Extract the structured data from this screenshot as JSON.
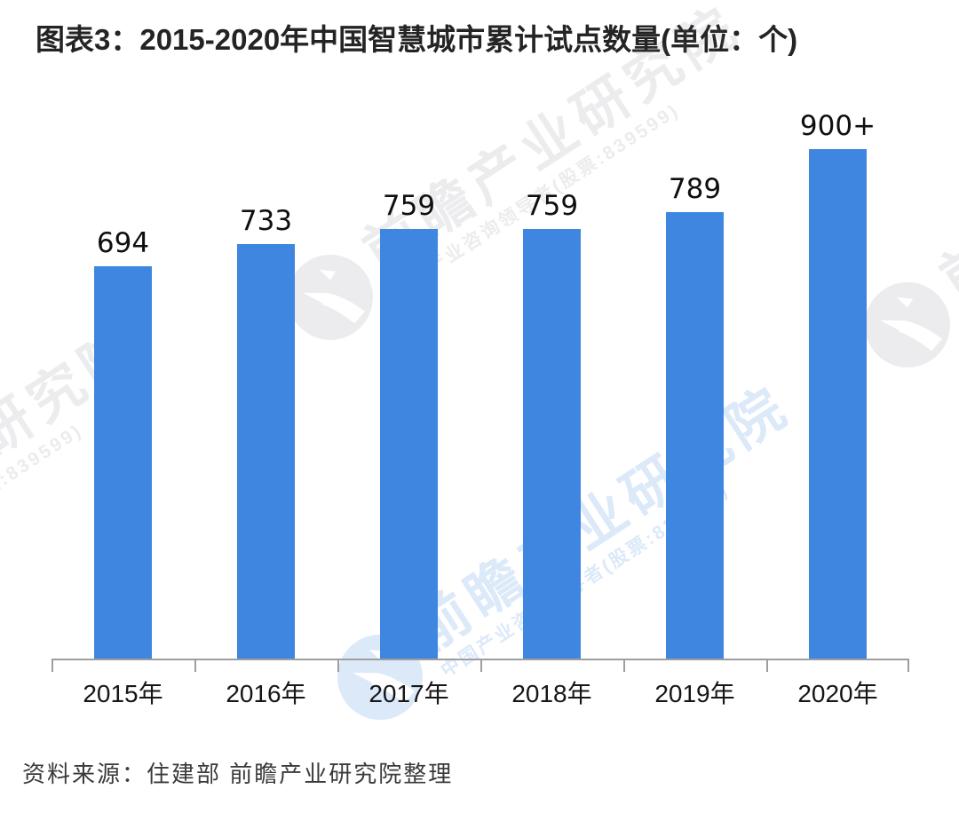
{
  "title": "图表3：2015-2020年中国智慧城市累计试点数量(单位：个)",
  "source": "资料来源：住建部 前瞻产业研究院整理",
  "watermark": {
    "main": "前瞻产业研究院",
    "sub": "中国产业咨询领导者(股票:839599)",
    "logo_icon": "qianzhan-circle-swoosh"
  },
  "colors": {
    "bar": "#3E86E0",
    "axis": "#9E9E9E",
    "title_text": "#242424",
    "value_text": "#0F0F0F",
    "source_text": "#3A3A3A"
  },
  "chart_data": {
    "type": "bar",
    "title": "图表3：2015-2020年中国智慧城市累计试点数量(单位：个)",
    "categories": [
      "2015年",
      "2016年",
      "2017年",
      "2018年",
      "2019年",
      "2020年"
    ],
    "values": [
      694,
      733,
      759,
      759,
      789,
      900
    ],
    "value_labels": [
      "694",
      "733",
      "759",
      "759",
      "789",
      "900+"
    ],
    "unit": "个",
    "xlabel": "",
    "ylabel": "",
    "ylim": [
      0,
      960
    ],
    "grid": false,
    "legend": false,
    "y_axis_shown": false,
    "bar_color": "#3E86E0"
  }
}
